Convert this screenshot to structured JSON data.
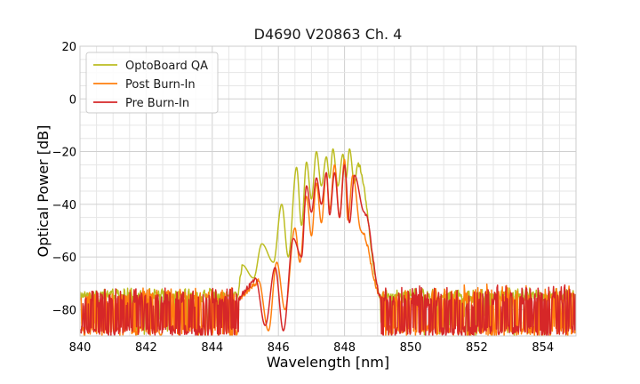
{
  "chart_data": {
    "type": "line",
    "title": "D4690 V20863 Ch. 4",
    "xlabel": "Wavelength [nm]",
    "ylabel": "Optical Power [dB]",
    "xlim": [
      840,
      855
    ],
    "ylim": [
      -90,
      20
    ],
    "xticks": [
      840,
      842,
      844,
      846,
      848,
      850,
      852,
      854
    ],
    "yticks": [
      20,
      0,
      -20,
      -40,
      -60,
      -80
    ],
    "xtick_labels": [
      "840",
      "842",
      "844",
      "846",
      "848",
      "850",
      "852",
      "854"
    ],
    "ytick_labels": [
      "20",
      "0",
      "−20",
      "−40",
      "−60",
      "−80"
    ],
    "grid": true,
    "legend_position": "top-left",
    "noise_floor": {
      "range_nm": [
        840,
        844.8,
        849.1,
        855
      ],
      "level_db": [
        -76,
        -73
      ],
      "bottom_db": -90
    },
    "series": [
      {
        "name": "OptoBoard QA",
        "color": "#bcbd22",
        "peaks": [
          {
            "x": 844.9,
            "y": -63
          },
          {
            "x": 845.5,
            "y": -55
          },
          {
            "x": 846.1,
            "y": -40
          },
          {
            "x": 846.55,
            "y": -26
          },
          {
            "x": 846.85,
            "y": -24
          },
          {
            "x": 847.15,
            "y": -20
          },
          {
            "x": 847.45,
            "y": -22
          },
          {
            "x": 847.65,
            "y": -19
          },
          {
            "x": 847.95,
            "y": -21
          },
          {
            "x": 848.15,
            "y": -19
          },
          {
            "x": 848.4,
            "y": -25
          }
        ],
        "valleys": [
          {
            "x": 845.25,
            "y": -68
          },
          {
            "x": 845.85,
            "y": -62
          },
          {
            "x": 846.3,
            "y": -60
          },
          {
            "x": 846.7,
            "y": -48
          },
          {
            "x": 847.0,
            "y": -38
          },
          {
            "x": 847.3,
            "y": -33
          },
          {
            "x": 847.55,
            "y": -30
          },
          {
            "x": 847.8,
            "y": -33
          },
          {
            "x": 848.05,
            "y": -30
          },
          {
            "x": 848.3,
            "y": -32
          }
        ]
      },
      {
        "name": "Post Burn-In",
        "color": "#ff7f0e",
        "peaks": [
          {
            "x": 845.4,
            "y": -69
          },
          {
            "x": 845.95,
            "y": -62
          },
          {
            "x": 846.5,
            "y": -49
          },
          {
            "x": 846.85,
            "y": -37
          },
          {
            "x": 847.15,
            "y": -32
          },
          {
            "x": 847.45,
            "y": -28
          },
          {
            "x": 847.7,
            "y": -25
          },
          {
            "x": 848.0,
            "y": -23
          },
          {
            "x": 848.25,
            "y": -29
          },
          {
            "x": 848.5,
            "y": -50
          }
        ],
        "valleys": [
          {
            "x": 845.7,
            "y": -88
          },
          {
            "x": 846.2,
            "y": -80
          },
          {
            "x": 846.65,
            "y": -62
          },
          {
            "x": 847.0,
            "y": -52
          },
          {
            "x": 847.3,
            "y": -47
          },
          {
            "x": 847.55,
            "y": -42
          },
          {
            "x": 847.85,
            "y": -45
          },
          {
            "x": 848.1,
            "y": -46
          }
        ]
      },
      {
        "name": "Pre Burn-In",
        "color": "#d62728",
        "peaks": [
          {
            "x": 845.3,
            "y": -68
          },
          {
            "x": 845.9,
            "y": -64
          },
          {
            "x": 846.45,
            "y": -53
          },
          {
            "x": 846.85,
            "y": -33
          },
          {
            "x": 847.15,
            "y": -30
          },
          {
            "x": 847.45,
            "y": -28
          },
          {
            "x": 847.7,
            "y": -28
          },
          {
            "x": 848.0,
            "y": -25
          },
          {
            "x": 848.3,
            "y": -29
          },
          {
            "x": 848.6,
            "y": -43
          }
        ],
        "valleys": [
          {
            "x": 845.6,
            "y": -86
          },
          {
            "x": 846.15,
            "y": -88
          },
          {
            "x": 846.7,
            "y": -60
          },
          {
            "x": 847.0,
            "y": -43
          },
          {
            "x": 847.3,
            "y": -40
          },
          {
            "x": 847.55,
            "y": -44
          },
          {
            "x": 847.85,
            "y": -45
          },
          {
            "x": 848.15,
            "y": -47
          }
        ]
      }
    ]
  }
}
